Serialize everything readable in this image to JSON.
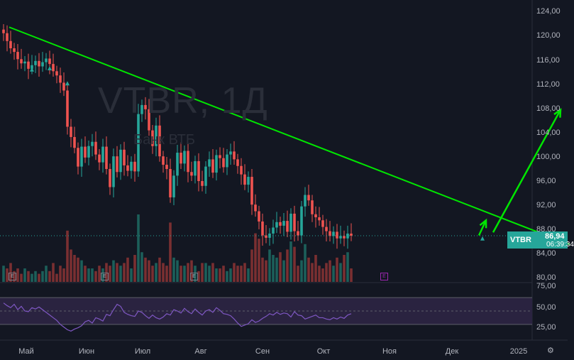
{
  "symbol": "VTBR",
  "watermark": {
    "title": "VTBR, 1Д",
    "subtitle": "Банк ВТБ"
  },
  "last_price": {
    "value": "86,94",
    "countdown": "06:39:34"
  },
  "price_axis": [
    "124,00",
    "120,00",
    "116,00",
    "112,00",
    "108,00",
    "104,00",
    "100,00",
    "96,00",
    "92,00",
    "88,00",
    "84,00",
    "80,00"
  ],
  "rsi_axis": [
    "75,00",
    "50,00",
    "25,00"
  ],
  "time_axis": [
    "Май",
    "Июн",
    "Июл",
    "Авг",
    "Сен",
    "Окт",
    "Ноя",
    "Дек",
    "2025"
  ],
  "event_marker": "E",
  "colors": {
    "up": "#26a69a",
    "down": "#ef5350",
    "trend": "#00e600",
    "rsi": "#7e57c2",
    "band": "#2a2340",
    "bg": "#131722"
  },
  "chart_data": {
    "type": "candlestick",
    "close_series": [
      120.5,
      119.2,
      118.0,
      117.4,
      116.2,
      115.5,
      115.8,
      114.6,
      115.2,
      115.9,
      115.0,
      115.7,
      116.3,
      115.4,
      114.2,
      113.5,
      112.3,
      111.0,
      105.0,
      103.3,
      101.5,
      98.4,
      101.7,
      99.9,
      101.8,
      102.5,
      100.4,
      99.1,
      101.7,
      98.0,
      95.0,
      100.1,
      97.5,
      101.2,
      98.6,
      97.7,
      99.2,
      97.6,
      107.1,
      108.6,
      107.9,
      104.4,
      101.8,
      105.2,
      100.1,
      98.7,
      98.0,
      93.3,
      96.9,
      100.7,
      98.9,
      101.0,
      97.5,
      96.9,
      99.3,
      96.0,
      95.2,
      98.4,
      99.6,
      97.4,
      100.3,
      99.8,
      98.3,
      100.4,
      100.9,
      99.6,
      98.5,
      97.1,
      95.4,
      96.7,
      92.1,
      91.0,
      89.3,
      87.0,
      86.6,
      87.3,
      88.3,
      89.2,
      88.6,
      89.4,
      87.6,
      90.6,
      87.7,
      87.0,
      91.8,
      93.7,
      92.8,
      90.5,
      90.0,
      89.5,
      88.4,
      87.7,
      86.9,
      87.6,
      86.5,
      86.9,
      86.5,
      87.3,
      86.94
    ],
    "xlabel": "",
    "ylabel": "",
    "ylim": [
      80,
      124
    ],
    "x_ticks": [
      "Май",
      "Июн",
      "Июл",
      "Авг",
      "Сен",
      "Окт",
      "Ноя",
      "Дек",
      "2025"
    ],
    "y_ticks": [
      124,
      120,
      116,
      112,
      108,
      104,
      100,
      96,
      92,
      88,
      84,
      80
    ],
    "indicators": {
      "volume": {
        "values": [
          6,
          5,
          7,
          4,
          5,
          3,
          5,
          4,
          3,
          4,
          3,
          4,
          6,
          4,
          7,
          3,
          6,
          5,
          19,
          12,
          10,
          9,
          8,
          6,
          5,
          5,
          4,
          6,
          5,
          7,
          6,
          8,
          7,
          6,
          7,
          9,
          5,
          10,
          25,
          11,
          9,
          8,
          6,
          7,
          9,
          7,
          6,
          22,
          9,
          8,
          6,
          6,
          7,
          8,
          6,
          4,
          7,
          7,
          6,
          7,
          5,
          5,
          6,
          4,
          5,
          7,
          6,
          6,
          7,
          5,
          12,
          18,
          16,
          9,
          8,
          12,
          10,
          9,
          11,
          8,
          12,
          15,
          13,
          6,
          8,
          14,
          9,
          7,
          10,
          6,
          5,
          7,
          8,
          6,
          9,
          7,
          10,
          11,
          5
        ]
      },
      "rsi": {
        "ylim": [
          15,
          85
        ],
        "band": [
          30,
          70
        ],
        "midline": 50,
        "values": [
          62,
          58,
          55,
          60,
          52,
          57,
          50,
          49,
          55,
          53,
          56,
          52,
          48,
          44,
          40,
          36,
          30,
          26,
          22,
          20,
          23,
          25,
          28,
          34,
          36,
          32,
          40,
          38,
          35,
          45,
          43,
          52,
          60,
          57,
          48,
          45,
          43,
          42,
          50,
          48,
          43,
          39,
          44,
          40,
          38,
          41,
          46,
          44,
          52,
          50,
          47,
          54,
          49,
          46,
          53,
          48,
          44,
          50,
          52,
          48,
          55,
          51,
          46,
          45,
          43,
          38,
          32,
          27,
          29,
          31,
          37,
          33,
          35,
          39,
          42,
          46,
          44,
          48,
          45,
          47,
          46,
          41,
          49,
          44,
          43,
          38,
          40,
          42,
          44,
          40,
          40,
          38,
          37,
          40,
          38,
          41,
          39,
          44,
          46
        ]
      }
    },
    "annotations": {
      "trendline": {
        "from": [
          0,
          121.5
        ],
        "to": [
          160,
          85.5
        ]
      },
      "arrow_up": {
        "from": [
          138,
          87.5
        ],
        "to": [
          157,
          107.8
        ]
      },
      "arrow_small": {
        "from": [
          134,
          87
        ],
        "to": [
          136,
          89.5
        ]
      }
    }
  }
}
